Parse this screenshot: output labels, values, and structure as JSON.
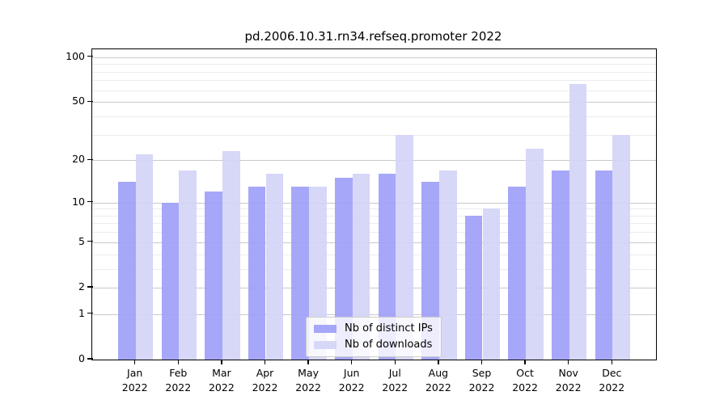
{
  "chart_data": {
    "type": "bar",
    "title": "pd.2006.10.31.rn34.refseq.promoter 2022",
    "categories": [
      "Jan",
      "Feb",
      "Mar",
      "Apr",
      "May",
      "Jun",
      "Jul",
      "Aug",
      "Sep",
      "Oct",
      "Nov",
      "Dec"
    ],
    "x_tick_line2": "2022",
    "series": [
      {
        "name": "Nb of distinct IPs",
        "color": "#a0a0f8",
        "values": [
          14,
          10,
          12,
          13,
          13,
          15,
          16,
          14,
          8,
          13,
          17,
          17
        ]
      },
      {
        "name": "Nb of downloads",
        "color": "#d4d4f7",
        "values": [
          22,
          17,
          23,
          16,
          13,
          16,
          30,
          17,
          9,
          24,
          66,
          30
        ]
      }
    ],
    "yscale": "log1p",
    "ylim": [
      0,
      113
    ],
    "y_major_ticks": [
      0,
      1,
      2,
      5,
      10,
      20,
      50,
      100
    ],
    "y_minor_ticks": [
      3,
      4,
      6,
      7,
      8,
      9,
      30,
      40,
      60,
      70,
      80,
      90
    ],
    "xlabel": "",
    "ylabel": "",
    "grid": "horizontal",
    "legend_position": "inside lower center"
  },
  "colors": {
    "major_grid": "#c9c9c9",
    "minor_grid": "#ececec",
    "spine": "#000000",
    "background": "#ffffff"
  }
}
